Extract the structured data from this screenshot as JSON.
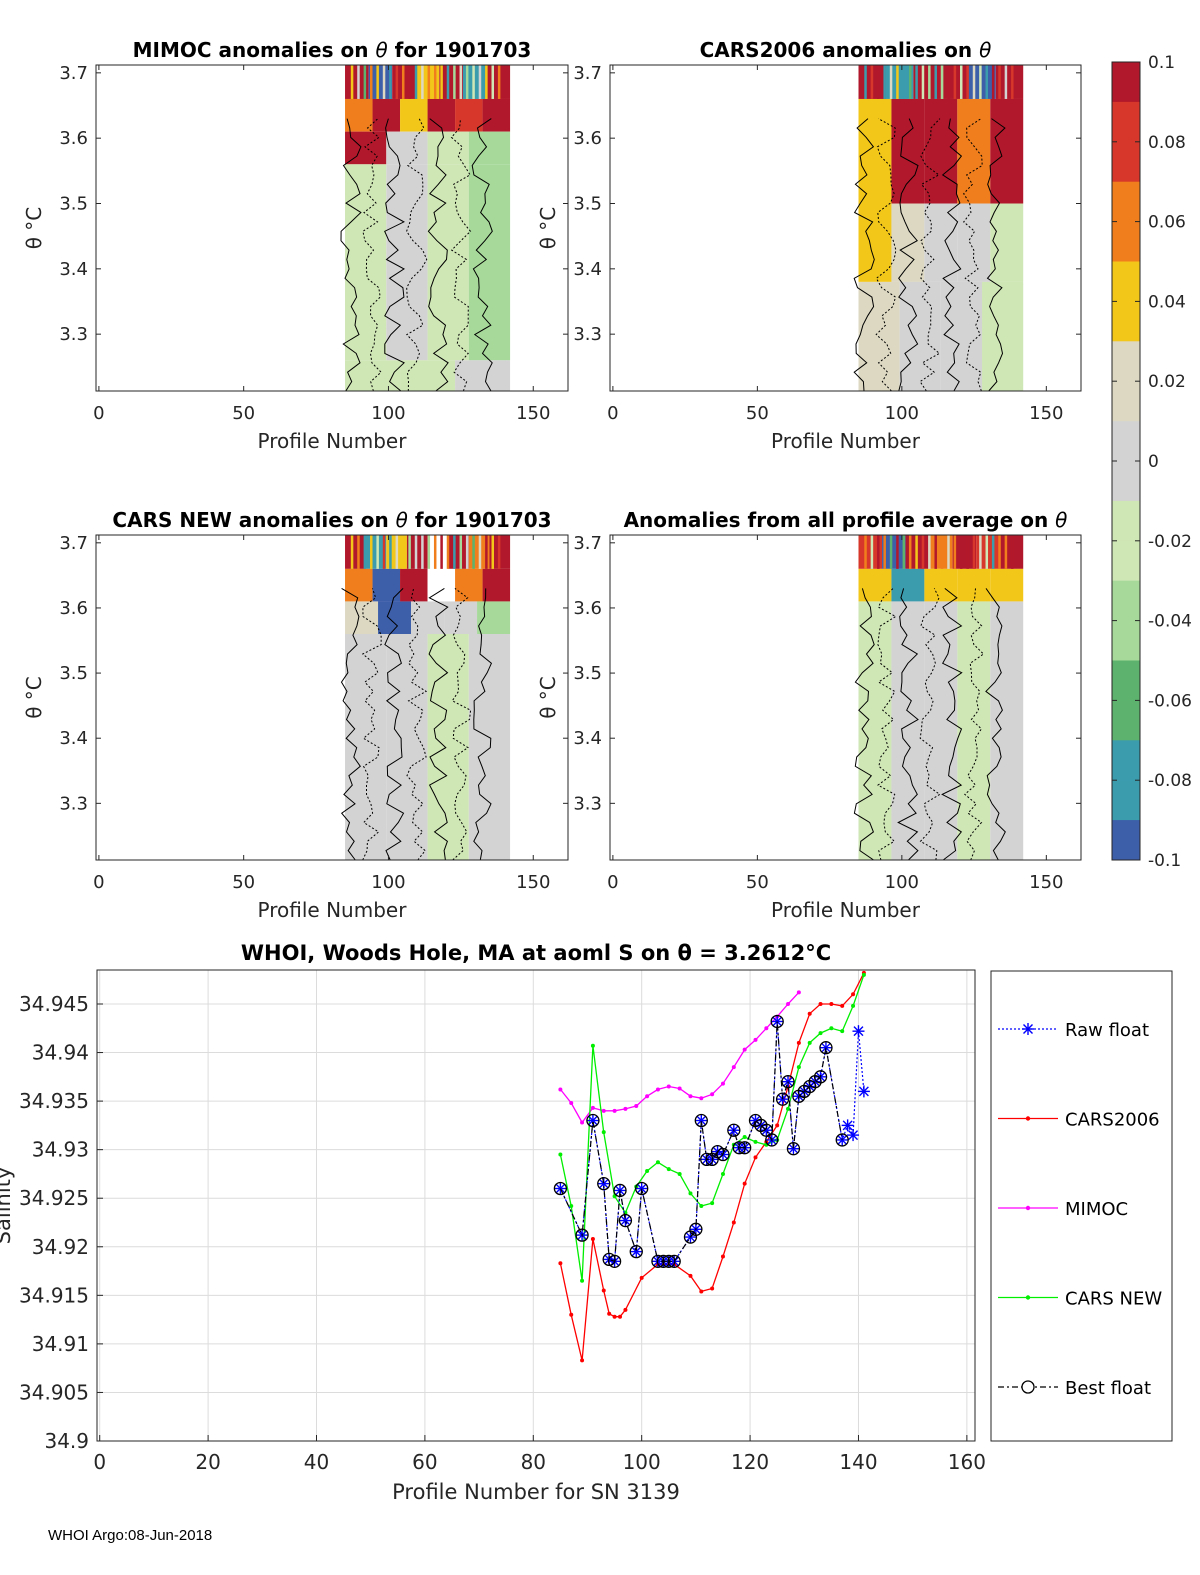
{
  "footer_text": "WHOI Argo:08-Jun-2018",
  "colorbar": {
    "ticks": [
      "0.1",
      "0.08",
      "0.06",
      "0.04",
      "0.02",
      "0",
      "-0.02",
      "-0.04",
      "-0.06",
      "-0.08",
      "-0.1"
    ],
    "colors": [
      "#b2182b",
      "#d6372a",
      "#f07e1c",
      "#f3c71a",
      "#dcd8c2",
      "#d3d3d3",
      "#cfe6b5",
      "#a6d99a",
      "#5db36d",
      "#3b9cae",
      "#3d5ea9"
    ]
  },
  "colors": {
    "raw": "#0000ff",
    "cars2006": "#ff0000",
    "mimoc": "#ff00ff",
    "cars_new": "#00ee00",
    "best": "#000000",
    "grid": "#dcdcdc"
  },
  "chart_data": [
    {
      "type": "heatmap",
      "title_pre": "MIMOC anomalies on ",
      "title_post": "  for 1901703",
      "xlabel": "Profile Number",
      "ylabel": "θ °C",
      "xlim": [
        -1,
        162
      ],
      "ylim": [
        3.213,
        3.712
      ],
      "xticks": [
        "0",
        "50",
        "100",
        "150"
      ],
      "yticks": [
        "3.3",
        "3.4",
        "3.5",
        "3.6",
        "3.7"
      ],
      "profile_range": [
        85,
        142
      ],
      "bands": [
        {
          "y": [
            3.66,
            3.712
          ],
          "colors": [
            "#b2182b",
            "#3d5ea9",
            "#b2182b",
            "#f3c71a",
            "#b2182b",
            "#3b9cae",
            "#b2182b"
          ]
        },
        {
          "y": [
            3.61,
            3.66
          ],
          "colors": [
            "#f07e1c",
            "#b2182b",
            "#f3c71a",
            "#b2182b",
            "#d6372a",
            "#b2182b"
          ]
        },
        {
          "y": [
            3.56,
            3.61
          ],
          "colors": [
            "#b2182b",
            "#d3d3d3",
            "#cfe6b5",
            "#a6d99a"
          ]
        },
        {
          "y": [
            3.26,
            3.56
          ],
          "colors": [
            "#cfe6b5",
            "#d3d3d3",
            "#cfe6b5",
            "#a6d99a"
          ]
        },
        {
          "y": [
            3.213,
            3.26
          ],
          "colors": [
            "#cfe6b5",
            "#cfe6b5",
            "#d3d3d3"
          ]
        }
      ]
    },
    {
      "type": "heatmap",
      "title_pre": "CARS2006 anomalies on ",
      "title_post": "",
      "xlabel": "Profile Number",
      "ylabel": "θ °C",
      "xlim": [
        -1,
        162
      ],
      "ylim": [
        3.213,
        3.712
      ],
      "xticks": [
        "0",
        "50",
        "100",
        "150"
      ],
      "yticks": [
        "3.3",
        "3.4",
        "3.5",
        "3.6",
        "3.7"
      ],
      "profile_range": [
        85,
        142
      ],
      "bands": [
        {
          "y": [
            3.66,
            3.712
          ],
          "colors": [
            "#b2182b",
            "#3b9cae",
            "#b2182b",
            "#b2182b",
            "#3d5ea9",
            "#b2182b"
          ]
        },
        {
          "y": [
            3.5,
            3.66
          ],
          "colors": [
            "#f3c71a",
            "#b2182b",
            "#b2182b",
            "#f07e1c",
            "#b2182b"
          ]
        },
        {
          "y": [
            3.38,
            3.5
          ],
          "colors": [
            "#f3c71a",
            "#dcd8c2",
            "#d3d3d3",
            "#d3d3d3",
            "#cfe6b5"
          ]
        },
        {
          "y": [
            3.213,
            3.38
          ],
          "colors": [
            "#dcd8c2",
            "#d3d3d3",
            "#d3d3d3",
            "#cfe6b5"
          ]
        }
      ]
    },
    {
      "type": "heatmap",
      "title_pre": "CARS NEW anomalies on ",
      "title_post": " for 1901703",
      "xlabel": "Profile Number",
      "ylabel": "θ °C",
      "xlim": [
        -1,
        162
      ],
      "ylim": [
        3.213,
        3.712
      ],
      "xticks": [
        "0",
        "50",
        "100",
        "150"
      ],
      "yticks": [
        "3.3",
        "3.4",
        "3.5",
        "3.6",
        "3.7"
      ],
      "profile_range": [
        85,
        142
      ],
      "bands": [
        {
          "y": [
            3.66,
            3.712
          ],
          "colors": [
            "#b2182b",
            "#3b9cae",
            "#f3c71a",
            "#b2182b",
            "#ffffff",
            "#b2182b",
            "#f07e1c",
            "#b2182b"
          ]
        },
        {
          "y": [
            3.61,
            3.66
          ],
          "colors": [
            "#f07e1c",
            "#3d5ea9",
            "#b2182b",
            "#ffffff",
            "#f07e1c",
            "#b2182b"
          ]
        },
        {
          "y": [
            3.56,
            3.61
          ],
          "colors": [
            "#dcd8c2",
            "#3d5ea9",
            "#d3d3d3",
            "#d3d3d3",
            "#a6d99a"
          ]
        },
        {
          "y": [
            3.213,
            3.56
          ],
          "colors": [
            "#d3d3d3",
            "#d3d3d3",
            "#cfe6b5",
            "#d3d3d3"
          ]
        }
      ]
    },
    {
      "type": "heatmap",
      "title_pre": "Anomalies from all profile average on ",
      "title_post": "",
      "xlabel": "Profile Number",
      "ylabel": "θ °C",
      "xlim": [
        -1,
        162
      ],
      "ylim": [
        3.213,
        3.712
      ],
      "xticks": [
        "0",
        "50",
        "100",
        "150"
      ],
      "yticks": [
        "3.3",
        "3.4",
        "3.5",
        "3.6",
        "3.7"
      ],
      "profile_range": [
        85,
        142
      ],
      "bands": [
        {
          "y": [
            3.66,
            3.712
          ],
          "colors": [
            "#d6372a",
            "#3d5ea9",
            "#b2182b",
            "#f07e1c",
            "#b2182b",
            "#d6372a",
            "#b2182b"
          ]
        },
        {
          "y": [
            3.61,
            3.66
          ],
          "colors": [
            "#f3c71a",
            "#3b9cae",
            "#f3c71a",
            "#f3c71a",
            "#f3c71a"
          ]
        },
        {
          "y": [
            3.213,
            3.61
          ],
          "colors": [
            "#cfe6b5",
            "#d3d3d3",
            "#d3d3d3",
            "#cfe6b5",
            "#d3d3d3"
          ]
        }
      ]
    },
    {
      "type": "line",
      "title": "WHOI, Woods Hole, MA at aoml S on θ = 3.2612°C",
      "xlabel": "Profile Number for SN 3139",
      "ylabel": "Salinity",
      "xlim": [
        -0.5,
        161.5
      ],
      "ylim": [
        34.9,
        34.9485
      ],
      "xticks": [
        0,
        20,
        40,
        60,
        80,
        100,
        120,
        140,
        160
      ],
      "yticks": [
        "34.9",
        "34.905",
        "34.91",
        "34.915",
        "34.92",
        "34.925",
        "34.93",
        "34.935",
        "34.94",
        "34.945"
      ],
      "series": [
        {
          "name": "Raw float",
          "x": [
            85,
            89,
            91,
            93,
            94,
            95,
            96,
            97,
            99,
            100,
            103,
            104,
            105,
            106,
            109,
            110,
            111,
            112,
            113,
            114,
            115,
            117,
            118,
            119,
            121,
            122,
            123,
            124,
            125,
            126,
            127,
            128,
            129,
            130,
            131,
            132,
            133,
            134,
            137,
            138,
            139,
            140,
            141
          ],
          "y": [
            34.926,
            34.9212,
            34.933,
            34.9265,
            34.9187,
            34.9185,
            34.9258,
            34.9227,
            34.9195,
            34.926,
            34.9185,
            34.9185,
            34.9185,
            34.9185,
            34.921,
            34.9218,
            34.933,
            34.929,
            34.929,
            34.9298,
            34.9295,
            34.932,
            34.9302,
            34.9302,
            34.933,
            34.9325,
            34.932,
            34.931,
            34.9432,
            34.9352,
            34.937,
            34.9301,
            34.9355,
            34.936,
            34.9365,
            34.937,
            34.9375,
            34.9405,
            34.931,
            34.9325,
            34.9315,
            34.9422,
            34.936
          ]
        },
        {
          "name": "CARS2006",
          "x": [
            85,
            87,
            89,
            91,
            93,
            94,
            95,
            96,
            97,
            100,
            103,
            106,
            109,
            111,
            113,
            115,
            117,
            119,
            121,
            123,
            125,
            127,
            129,
            131,
            133,
            135,
            137,
            139,
            141
          ],
          "y": [
            34.9183,
            34.913,
            34.9083,
            34.9208,
            34.9155,
            34.9131,
            34.9128,
            34.9128,
            34.9135,
            34.9168,
            34.9182,
            34.9182,
            34.917,
            34.9154,
            34.9157,
            34.919,
            34.9225,
            34.9265,
            34.9292,
            34.9308,
            34.9325,
            34.9365,
            34.941,
            34.944,
            34.945,
            34.945,
            34.9448,
            34.946,
            34.9482
          ]
        },
        {
          "name": "MIMOC",
          "x": [
            85,
            87,
            89,
            91,
            93,
            95,
            97,
            99,
            101,
            103,
            105,
            107,
            109,
            111,
            113,
            115,
            117,
            119,
            121,
            123,
            125,
            127,
            129
          ],
          "y": [
            34.9362,
            34.9348,
            34.9328,
            34.9343,
            34.934,
            34.934,
            34.9342,
            34.9345,
            34.9355,
            34.9362,
            34.9365,
            34.9363,
            34.9355,
            34.9353,
            34.9357,
            34.9368,
            34.9385,
            34.9403,
            34.9413,
            34.9425,
            34.9437,
            34.945,
            34.9462
          ]
        },
        {
          "name": "CARS NEW",
          "x": [
            85,
            87,
            89,
            91,
            93,
            95,
            97,
            99,
            101,
            103,
            105,
            107,
            109,
            111,
            113,
            115,
            117,
            119,
            121,
            123,
            125,
            127,
            129,
            131,
            133,
            135,
            137,
            139,
            141
          ],
          "y": [
            34.9295,
            34.9242,
            34.9165,
            34.9407,
            34.9318,
            34.9252,
            34.9235,
            34.9262,
            34.9278,
            34.9287,
            34.928,
            34.9275,
            34.9255,
            34.9242,
            34.9245,
            34.9275,
            34.9305,
            34.9313,
            34.9308,
            34.9305,
            34.931,
            34.9342,
            34.9385,
            34.941,
            34.942,
            34.9425,
            34.9422,
            34.9448,
            34.948
          ]
        },
        {
          "name": "Best float",
          "x": [
            85,
            89,
            91,
            93,
            94,
            95,
            96,
            97,
            99,
            100,
            103,
            104,
            105,
            106,
            109,
            110,
            111,
            112,
            113,
            114,
            115,
            117,
            118,
            119,
            121,
            122,
            123,
            124,
            125,
            126,
            127,
            128,
            129,
            130,
            131,
            132,
            133,
            134,
            137
          ],
          "y": [
            34.926,
            34.9212,
            34.933,
            34.9265,
            34.9187,
            34.9185,
            34.9258,
            34.9227,
            34.9195,
            34.926,
            34.9185,
            34.9185,
            34.9185,
            34.9185,
            34.921,
            34.9218,
            34.933,
            34.929,
            34.929,
            34.9298,
            34.9295,
            34.932,
            34.9302,
            34.9302,
            34.933,
            34.9325,
            34.932,
            34.931,
            34.9432,
            34.9352,
            34.937,
            34.9301,
            34.9355,
            34.936,
            34.9365,
            34.937,
            34.9375,
            34.9405,
            34.931
          ]
        }
      ],
      "legend": [
        "Raw float",
        "CARS2006",
        "MIMOC",
        "CARS NEW",
        "Best float"
      ]
    }
  ]
}
